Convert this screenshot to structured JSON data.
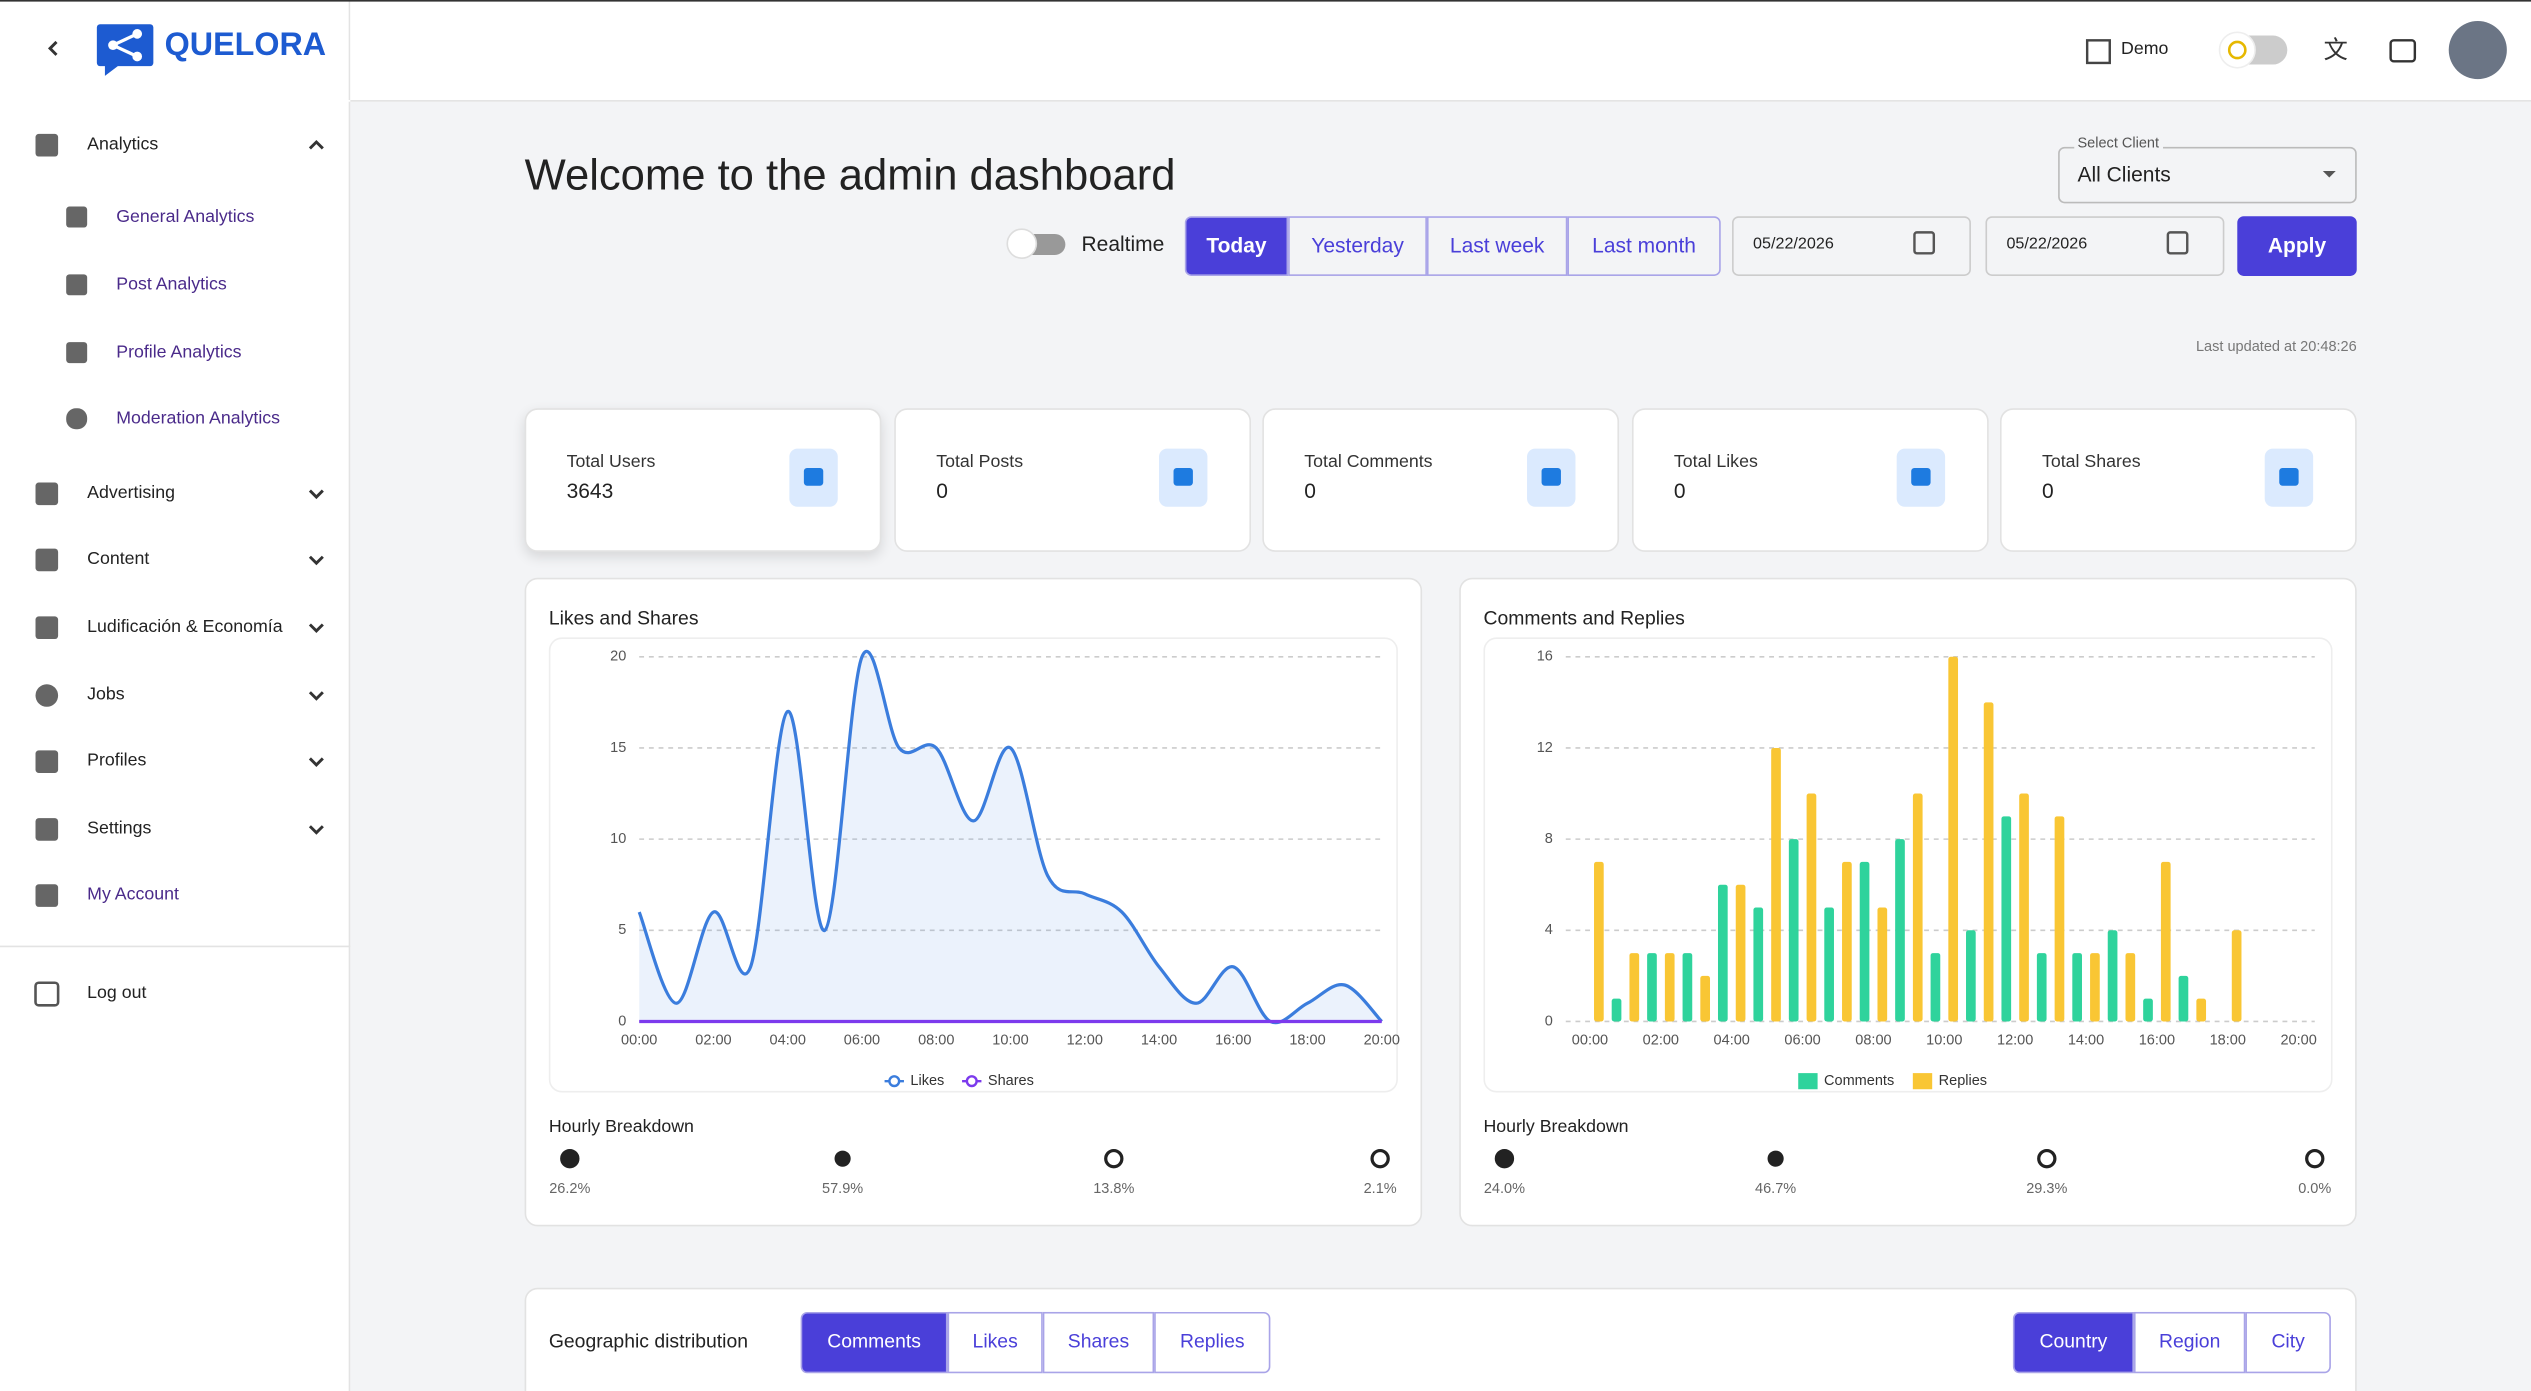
{
  "sidebar": {
    "brand": "QUELORA",
    "nav": [
      {
        "label": "Analytics",
        "children": [
          {
            "label": "General Analytics"
          },
          {
            "label": "Post Analytics"
          },
          {
            "label": "Profile Analytics"
          },
          {
            "label": "Moderation Analytics"
          }
        ]
      },
      {
        "label": "Advertising"
      },
      {
        "label": "Content"
      },
      {
        "label": "Ludificación & Economía"
      },
      {
        "label": "Jobs"
      },
      {
        "label": "Profiles"
      },
      {
        "label": "Settings"
      },
      {
        "label": "My Account"
      }
    ],
    "logout": "Log out"
  },
  "header": {
    "org": "Demo"
  },
  "title": "Welcome to the admin dashboard",
  "controls": {
    "realtime": "Realtime",
    "ranges": [
      "Today",
      "Yesterday",
      "Last week",
      "Last month"
    ],
    "date_from": "05/22/2026",
    "date_to": "05/22/2026",
    "apply": "Apply",
    "client_label": "Select Client",
    "client": "All Clients"
  },
  "last_updated": "Last updated at 20:48:26",
  "stats": [
    {
      "label": "Total Users",
      "value": 3643
    },
    {
      "label": "Total Posts",
      "value": 0
    },
    {
      "label": "Total Comments",
      "value": 0
    },
    {
      "label": "Total Likes",
      "value": 0
    },
    {
      "label": "Total Shares",
      "value": 0
    }
  ],
  "chart_data": [
    {
      "type": "line",
      "title": "Likes and Shares",
      "categories": [
        "00:00",
        null,
        "02:00",
        null,
        "04:00",
        null,
        "06:00",
        null,
        "08:00",
        null,
        "10:00",
        null,
        "12:00",
        null,
        "14:00",
        null,
        "16:00",
        null,
        "18:00",
        null,
        "20:00"
      ],
      "series": [
        {
          "name": "Likes",
          "color": "#3b7ddd",
          "values": [
            6,
            1,
            6,
            3,
            17,
            5,
            20,
            15,
            15,
            11,
            15,
            8,
            7,
            6,
            3,
            1,
            3,
            0,
            1,
            2,
            0
          ]
        },
        {
          "name": "Shares",
          "color": "#7c3aed",
          "values": [
            0,
            0,
            0,
            0,
            0,
            0,
            0,
            0,
            0,
            0,
            0,
            0,
            0,
            0,
            0,
            0,
            0,
            0,
            0,
            0,
            0
          ]
        }
      ],
      "ylim": [
        0,
        20
      ],
      "yticks": [
        0,
        5,
        10,
        15,
        20
      ],
      "grid": true
    },
    {
      "type": "bar",
      "title": "Comments and Replies",
      "categories": [
        "00:00",
        null,
        "02:00",
        null,
        "04:00",
        null,
        "06:00",
        null,
        "08:00",
        null,
        "10:00",
        null,
        "12:00",
        null,
        "14:00",
        null,
        "16:00",
        null,
        "18:00",
        null,
        "20:00"
      ],
      "series": [
        {
          "name": "Comments",
          "color": "#2fd39c",
          "values": [
            0,
            1,
            3,
            3,
            6,
            5,
            8,
            5,
            7,
            8,
            3,
            4,
            9,
            3,
            3,
            4,
            1,
            2,
            0,
            0,
            0
          ]
        },
        {
          "name": "Replies",
          "color": "#f9c634",
          "values": [
            7,
            3,
            3,
            2,
            6,
            12,
            10,
            7,
            5,
            10,
            16,
            14,
            10,
            9,
            3,
            3,
            7,
            1,
            4,
            0,
            0
          ]
        }
      ],
      "ylim": [
        0,
        16
      ],
      "yticks": [
        0,
        4,
        8,
        12,
        16
      ],
      "grid": true
    }
  ],
  "breakdowns": [
    {
      "title": "Hourly Breakdown",
      "values": [
        26.2,
        57.9,
        13.8,
        2.1
      ],
      "value_labels": [
        "26.2%",
        "57.9%",
        "13.8%",
        "2.1%"
      ]
    },
    {
      "title": "Hourly Breakdown",
      "values": [
        24.0,
        46.7,
        29.3,
        0.0
      ],
      "value_labels": [
        "24.0%",
        "46.7%",
        "29.3%",
        "0.0%"
      ]
    }
  ],
  "geo": {
    "title": "Geographic distribution",
    "metrics": [
      "Comments",
      "Likes",
      "Shares",
      "Replies"
    ],
    "levels": [
      "Country",
      "Region",
      "City"
    ]
  }
}
